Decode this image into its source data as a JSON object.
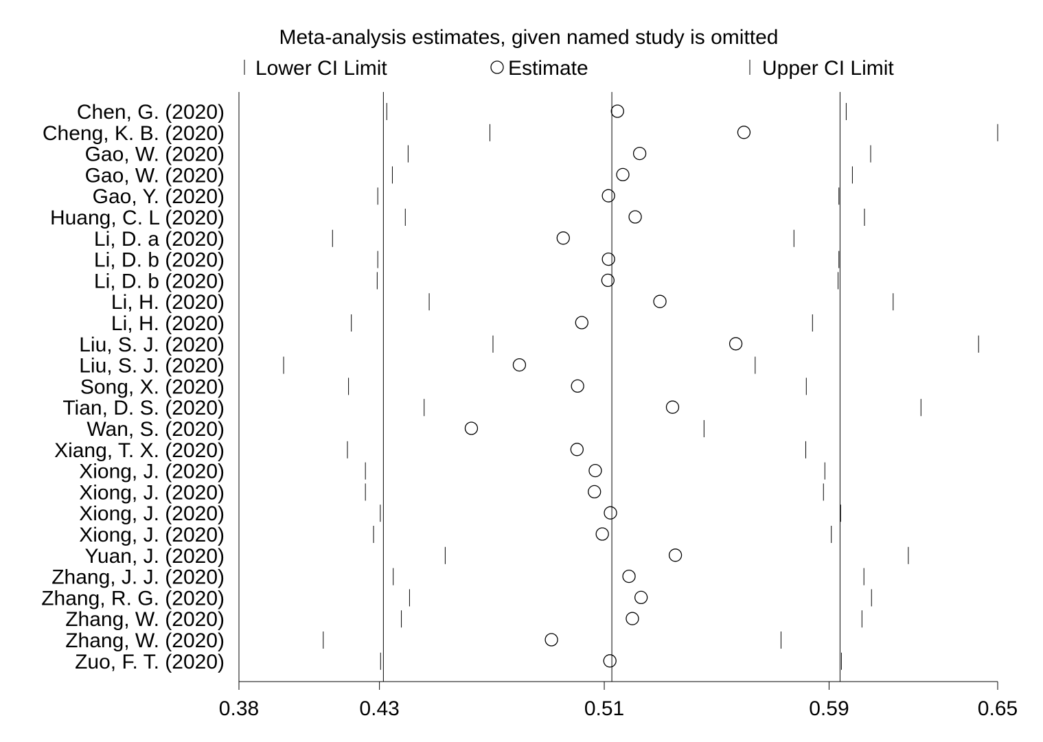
{
  "chart_data": {
    "type": "scatter",
    "title": "Meta-analysis estimates, given named study is omitted",
    "legend": {
      "placement": "top",
      "lower": "Lower CI Limit",
      "estimate": "Estimate",
      "upper": "Upper CI Limit"
    },
    "xlim": [
      0.38,
      0.65
    ],
    "ticks": [
      {
        "value": 0.38,
        "label": "0.38"
      },
      {
        "value": 0.43,
        "label": "0.43"
      },
      {
        "value": 0.51,
        "label": "0.51"
      },
      {
        "value": 0.59,
        "label": "0.59"
      },
      {
        "value": 0.65,
        "label": "0.65"
      }
    ],
    "reference_lines": [
      0.4314,
      0.5127,
      0.5939
    ],
    "studies": [
      {
        "label": "Chen, G. (2020)",
        "lower": 0.4326,
        "estimate": 0.5147,
        "upper": 0.5961
      },
      {
        "label": "Cheng, K. B. (2020)",
        "lower": 0.4693,
        "estimate": 0.5597,
        "upper": 0.65
      },
      {
        "label": "Gao, W. (2020)",
        "lower": 0.4402,
        "estimate": 0.5226,
        "upper": 0.6048
      },
      {
        "label": "Gao, W. (2020)",
        "lower": 0.4346,
        "estimate": 0.5166,
        "upper": 0.5983
      },
      {
        "label": "Gao, Y. (2020)",
        "lower": 0.4294,
        "estimate": 0.5115,
        "upper": 0.5935
      },
      {
        "label": "Huang, C. L (2020)",
        "lower": 0.4392,
        "estimate": 0.521,
        "upper": 0.6026
      },
      {
        "label": "Li, D. a (2020)",
        "lower": 0.4133,
        "estimate": 0.4954,
        "upper": 0.5775
      },
      {
        "label": "Li, D. b (2020)",
        "lower": 0.4294,
        "estimate": 0.5115,
        "upper": 0.5935
      },
      {
        "label": "Li, D. b (2020)",
        "lower": 0.4292,
        "estimate": 0.5113,
        "upper": 0.5932
      },
      {
        "label": "Li, H. (2020)",
        "lower": 0.4477,
        "estimate": 0.5298,
        "upper": 0.6128
      },
      {
        "label": "Li, H. (2020)",
        "lower": 0.42,
        "estimate": 0.502,
        "upper": 0.5841
      },
      {
        "label": "Liu, S. J. (2020)",
        "lower": 0.4704,
        "estimate": 0.5568,
        "upper": 0.6432
      },
      {
        "label": "Liu, S. J. (2020)",
        "lower": 0.3959,
        "estimate": 0.4798,
        "upper": 0.5637
      },
      {
        "label": "Song, X. (2020)",
        "lower": 0.419,
        "estimate": 0.5005,
        "upper": 0.5819
      },
      {
        "label": "Tian, D. S. (2020)",
        "lower": 0.4459,
        "estimate": 0.5343,
        "upper": 0.6227
      },
      {
        "label": "Wan, S. (2020)",
        "lower": 0.38,
        "estimate": 0.4627,
        "upper": 0.5455
      },
      {
        "label": "Xiang, T. X. (2020)",
        "lower": 0.4186,
        "estimate": 0.5003,
        "upper": 0.5817
      },
      {
        "label": "Xiong, J. (2020)",
        "lower": 0.425,
        "estimate": 0.5068,
        "upper": 0.5885
      },
      {
        "label": "Xiong, J. (2020)",
        "lower": 0.425,
        "estimate": 0.5065,
        "upper": 0.588
      },
      {
        "label": "Xiong, J. (2020)",
        "lower": 0.4303,
        "estimate": 0.5122,
        "upper": 0.5941
      },
      {
        "label": "Xiong, J. (2020)",
        "lower": 0.4279,
        "estimate": 0.5093,
        "upper": 0.5908
      },
      {
        "label": "Yuan, J. (2020)",
        "lower": 0.4534,
        "estimate": 0.5353,
        "upper": 0.6182
      },
      {
        "label": "Zhang, J. J. (2020)",
        "lower": 0.4349,
        "estimate": 0.5188,
        "upper": 0.6024
      },
      {
        "label": "Zhang, R. G. (2020)",
        "lower": 0.4407,
        "estimate": 0.5231,
        "upper": 0.6051
      },
      {
        "label": "Zhang, W. (2020)",
        "lower": 0.4378,
        "estimate": 0.52,
        "upper": 0.6017
      },
      {
        "label": "Zhang, W. (2020)",
        "lower": 0.41,
        "estimate": 0.4912,
        "upper": 0.5729
      },
      {
        "label": "Zuo, F. T. (2020)",
        "lower": 0.4304,
        "estimate": 0.512,
        "upper": 0.5944
      }
    ]
  }
}
